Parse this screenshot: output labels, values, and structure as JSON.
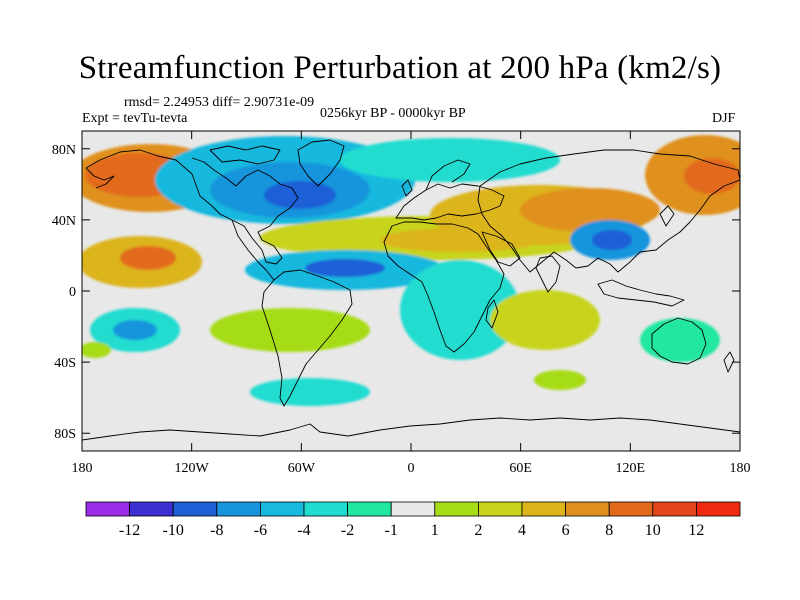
{
  "title": "Streamfunction Perturbation at 200 hPa (km2/s)",
  "stats": "rmsd= 2.24953 diff= 2.90731e-09",
  "experiment": "Expt = tevTu-tevta",
  "period": "0256kyr BP - 0000kyr BP",
  "season": "DJF",
  "lat_ticks": [
    "80N",
    "40N",
    "0",
    "40S",
    "80S"
  ],
  "lon_ticks": [
    "180",
    "120W",
    "60W",
    "0",
    "60E",
    "120E",
    "180"
  ],
  "colorbar": {
    "labels": [
      "-12",
      "-10",
      "-8",
      "-6",
      "-4",
      "-2",
      "-1",
      "1",
      "2",
      "4",
      "6",
      "8",
      "10",
      "12"
    ],
    "colors": [
      "#9a2be8",
      "#3b2fd2",
      "#1f5fd6",
      "#1794dc",
      "#19b8dd",
      "#20dcd0",
      "#22e7a0",
      "#e8e8e8",
      "#a6dc18",
      "#c8d41a",
      "#dcb41c",
      "#e0901c",
      "#e26a1a",
      "#e4461c",
      "#ee2a10"
    ]
  },
  "map_colors": {
    "ocean_bg": "#e8e8e8",
    "coast": "#000000"
  }
}
